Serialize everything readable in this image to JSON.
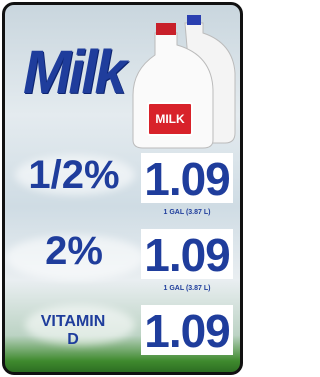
{
  "title": "Milk",
  "jug_label": "MILK",
  "items": [
    {
      "label": "1/2%",
      "price": "1.09",
      "size": "1 GAL (3.87 L)"
    },
    {
      "label": "2%",
      "price": "1.09",
      "size": "1 GAL (3.87 L)"
    },
    {
      "label": "VITAMIN D",
      "price": "1.09"
    }
  ]
}
